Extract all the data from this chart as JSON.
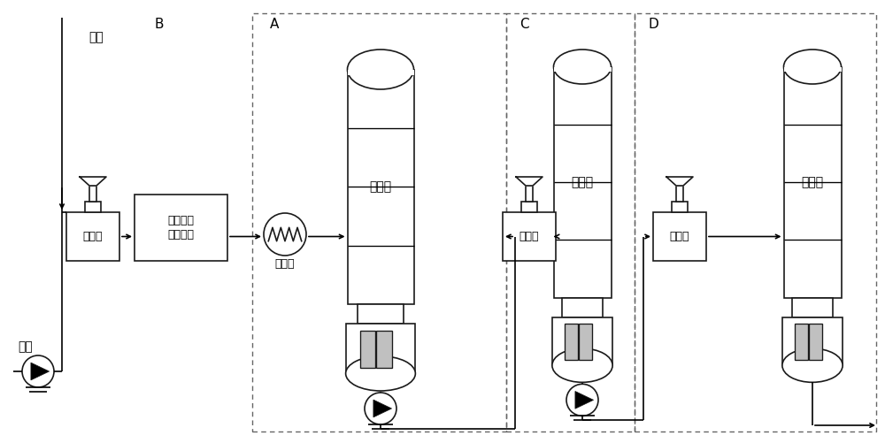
{
  "bg_color": "#ffffff",
  "line_color": "#1a1a1a",
  "dashed_color": "#666666",
  "gray_fill": "#c0c0c0",
  "labels": {
    "hydrogen": "氢气",
    "crude_oil": "原油",
    "heater1": "加热炉",
    "reaction_unit_line1": "加氢脱硫",
    "reaction_unit_line2": "反应单元",
    "condenser": "冷凝器",
    "prelim_tower": "初馏塔",
    "heater2": "加热炉",
    "atm_tower": "常压塔",
    "heater3": "加热炉",
    "vac_tower": "减压塔",
    "A": "A",
    "B": "B",
    "C": "C",
    "D": "D"
  }
}
